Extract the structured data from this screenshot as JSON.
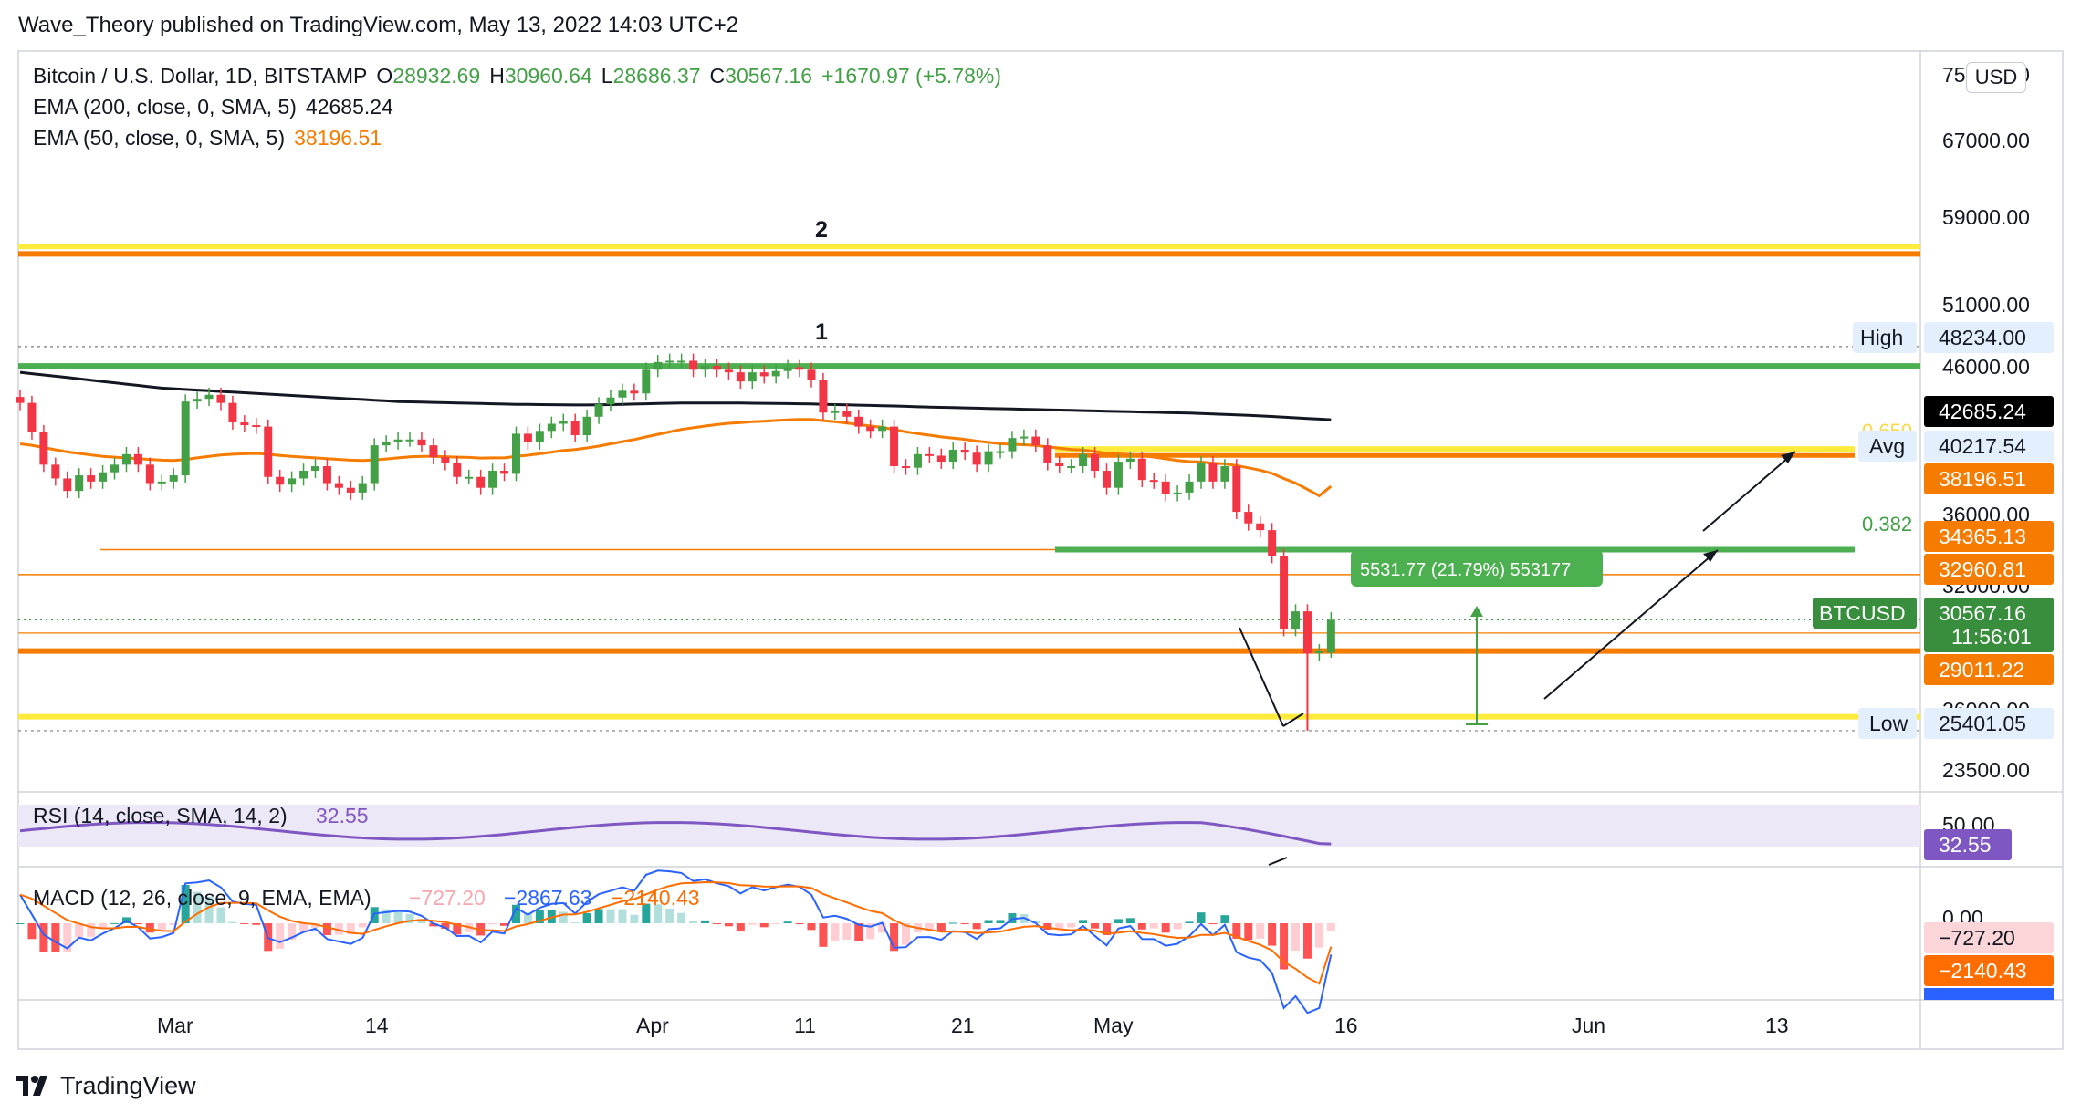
{
  "header": {
    "published": "Wave_Theory published on TradingView.com, May 13, 2022 14:03 UTC+2"
  },
  "legend": {
    "symbol": "Bitcoin / U.S. Dollar, 1D, BITSTAMP",
    "open_label": "O",
    "open": "28932.69",
    "high_label": "H",
    "high": "30960.64",
    "low_label": "L",
    "low": "28686.37",
    "close_label": "C",
    "close": "30567.16",
    "change": "+1670.97 (+5.78%)",
    "ema200_label": "EMA (200, close, 0, SMA, 5)",
    "ema200_value": "42685.24",
    "ema50_label": "EMA (50, close, 0, SMA, 5)",
    "ema50_value": "38196.51"
  },
  "currency_button": "USD",
  "price_axis": {
    "ticks": [
      "75000.00",
      "67000.00",
      "59000.00",
      "51000.00",
      "46000.00",
      "36000.00",
      "32000.00",
      "26000.00",
      "23500.00"
    ]
  },
  "price_labels": {
    "high_label": "High",
    "high_value": "48234.00",
    "ema200_value": "42685.24",
    "avg_label": "Avg",
    "avg_value": "40217.54",
    "ema50_value": "38196.51",
    "level_34365": "34365.13",
    "level_32960": "32960.81",
    "symbol_label": "BTCUSD",
    "last_value": "30567.16",
    "countdown": "11:56:01",
    "level_29011": "29011.22",
    "low_label": "Low",
    "low_value": "25401.05"
  },
  "annotations": {
    "wave_1": "1",
    "wave_2": "2",
    "fib_0382": "0.382",
    "fib_0650": "0.650",
    "measure": "5531.77 (21.79%) 553177"
  },
  "rsi": {
    "label": "RSI (14, close, SMA, 14, 2)",
    "value": "32.55",
    "axis_tick": "50.00"
  },
  "macd": {
    "label": "MACD (12, 26, close, 9, EMA, EMA)",
    "hist_value": "−727.20",
    "macd_value": "−2867.63",
    "signal_value": "−2140.43",
    "axis_tick": "0.00",
    "hist_label": "−727.20",
    "signal_label": "−2140.43",
    "macd_label": "−2867.63"
  },
  "time_axis": {
    "ticks": [
      "Mar",
      "14",
      "Apr",
      "11",
      "21",
      "May",
      "16",
      "Jun",
      "13"
    ]
  },
  "footer": {
    "brand": "TradingView"
  },
  "colors": {
    "up": "#43a047",
    "down": "#f23645",
    "ema200": "#131722",
    "ema50": "#f57c00",
    "green_level": "#4caf50",
    "yellow_level": "#ffeb3b",
    "orange_level": "#f57c00",
    "rsi": "#7e57c2",
    "macd": "#2962ff",
    "signal": "#ff6d00"
  },
  "chart_data": {
    "type": "candlestick",
    "timeframe": "1D",
    "series_names": [
      "BTCUSD",
      "EMA 200",
      "EMA 50"
    ],
    "ylim": [
      23000,
      76000
    ],
    "y_scale": "log",
    "last_candle": {
      "date": "2022-05-13",
      "open": 28932.69,
      "high": 30960.64,
      "low": 28686.37,
      "close": 30567.16
    },
    "candles_close": [
      43900,
      41800,
      39600,
      38700,
      37900,
      38900,
      38500,
      39100,
      39600,
      40300,
      39600,
      38400,
      38500,
      38900,
      44000,
      44200,
      44500,
      43900,
      42500,
      42300,
      42200,
      38800,
      38300,
      38700,
      39200,
      39500,
      38400,
      38100,
      37800,
      38400,
      40900,
      41100,
      41300,
      41300,
      40900,
      40100,
      39700,
      38800,
      38800,
      38100,
      39200,
      39000,
      41700,
      41100,
      41900,
      42400,
      42600,
      41600,
      42900,
      43800,
      44300,
      44800,
      44600,
      46400,
      47000,
      47100,
      47100,
      46400,
      46700,
      46400,
      46200,
      45500,
      46200,
      45900,
      46300,
      46600,
      46400,
      45600,
      43200,
      43300,
      42900,
      42200,
      41900,
      42200,
      39500,
      39400,
      40300,
      40200,
      39800,
      40600,
      40400,
      39600,
      40500,
      40500,
      41400,
      41500,
      40900,
      39700,
      39500,
      39500,
      40300,
      39200,
      38100,
      39800,
      40000,
      38600,
      38500,
      37700,
      37800,
      38500,
      39700,
      38500,
      39500,
      36600,
      35900,
      35500,
      34000,
      30100,
      31000,
      28900,
      29000,
      30567
    ],
    "ema200": [
      46200,
      46100,
      46000,
      45900,
      45800,
      45700,
      45600,
      45500,
      45400,
      45300,
      45200,
      45100,
      45000,
      44950,
      44900,
      44850,
      44800,
      44750,
      44700,
      44650,
      44600,
      44550,
      44500,
      44450,
      44400,
      44350,
      44300,
      44250,
      44200,
      44150,
      44100,
      44050,
      44000,
      43980,
      43960,
      43940,
      43920,
      43900,
      43880,
      43860,
      43840,
      43820,
      43800,
      43790,
      43780,
      43770,
      43760,
      43750,
      43750,
      43760,
      43780,
      43800,
      43820,
      43840,
      43860,
      43880,
      43900,
      43900,
      43900,
      43900,
      43900,
      43900,
      43880,
      43870,
      43860,
      43850,
      43840,
      43830,
      43800,
      43780,
      43760,
      43740,
      43720,
      43700,
      43680,
      43650,
      43620,
      43600,
      43580,
      43560,
      43540,
      43520,
      43500,
      43480,
      43460,
      43440,
      43420,
      43400,
      43380,
      43360,
      43340,
      43320,
      43300,
      43280,
      43260,
      43240,
      43220,
      43200,
      43180,
      43160,
      43130,
      43100,
      43070,
      43040,
      43000,
      42960,
      42920,
      42870,
      42820,
      42770,
      42730,
      42685
    ],
    "ema50": [
      41000,
      40900,
      40750,
      40600,
      40450,
      40350,
      40250,
      40150,
      40100,
      40050,
      40000,
      39950,
      39900,
      39880,
      39950,
      40050,
      40150,
      40250,
      40300,
      40330,
      40350,
      40300,
      40220,
      40150,
      40100,
      40050,
      40000,
      39950,
      39900,
      39880,
      39920,
      39980,
      40050,
      40120,
      40150,
      40150,
      40130,
      40100,
      40080,
      40040,
      40050,
      40050,
      40150,
      40230,
      40330,
      40440,
      40550,
      40620,
      40720,
      40850,
      41000,
      41150,
      41300,
      41480,
      41660,
      41830,
      42000,
      42120,
      42240,
      42340,
      42430,
      42480,
      42540,
      42580,
      42630,
      42680,
      42710,
      42710,
      42620,
      42540,
      42450,
      42350,
      42240,
      42150,
      41990,
      41830,
      41710,
      41600,
      41480,
      41400,
      41310,
      41190,
      41100,
      41010,
      40970,
      40940,
      40890,
      40800,
      40710,
      40620,
      40580,
      40480,
      40350,
      40320,
      40290,
      40200,
      40110,
      39990,
      39880,
      39800,
      39780,
      39700,
      39660,
      39540,
      39390,
      39240,
      39030,
      38700,
      38400,
      38000,
      37600,
      38196
    ],
    "levels": [
      {
        "name": "wave-2-resistance-yellow",
        "value": 57000
      },
      {
        "name": "wave-2-resistance-orange",
        "value": 56300
      },
      {
        "name": "high",
        "value": 48234
      },
      {
        "name": "resistance-green",
        "value": 46700
      },
      {
        "name": "fib-0.650",
        "value": 40650
      },
      {
        "name": "avg",
        "value": 40217.54
      },
      {
        "name": "fib-0.382",
        "value": 34365.13
      },
      {
        "name": "level-32960",
        "value": 32960.81
      },
      {
        "name": "level-29011",
        "value": 29011.22
      },
      {
        "name": "support-yellow",
        "value": 26000
      },
      {
        "name": "low",
        "value": 25401.05
      }
    ],
    "rsi": {
      "name": "RSI (14, close, SMA, 14, 2)",
      "last": 32.55,
      "band": [
        30,
        70
      ]
    },
    "macd": {
      "name": "MACD (12, 26, close, 9, EMA, EMA)",
      "histogram_last": -727.2,
      "macd_last": -2867.63,
      "signal_last": -2140.43
    },
    "x_ticks": [
      "Mar",
      "14",
      "Apr",
      "11",
      "21",
      "May",
      "16",
      "Jun",
      "13"
    ]
  }
}
